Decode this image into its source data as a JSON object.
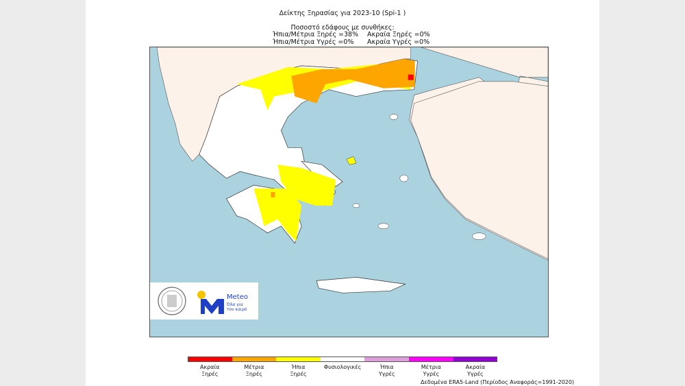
{
  "title": "Δείκτης Ξηρασίας για 2023-10 (Spi-1 )",
  "subtitle": "Ποσοστό εδάφους με συνθήκες:",
  "stats": {
    "mild_moderate_dry": "Ήπια/Μέτρια Ξηρές =38%",
    "extreme_dry": "Ακραία Ξηρές =0%",
    "mild_moderate_wet": "Ήπια/Μέτρια Υγρές =0%",
    "extreme_wet": "Ακραία Υγρές =0%"
  },
  "logo": {
    "brand": "Meteo",
    "tagline_1": "Όλα για",
    "tagline_2": "τον καιρό"
  },
  "colors": {
    "sea": "#aad3df",
    "greece": "#ffffff",
    "other_land": "#fdf2ea",
    "accent_blue": "#1e3fc6",
    "sun": "#f5c400"
  },
  "legend": [
    {
      "line1": "Ακραία",
      "line2": "Ξηρές",
      "color": "#ff0000"
    },
    {
      "line1": "Μέτρια",
      "line2": "Ξηρές",
      "color": "#ffa500"
    },
    {
      "line1": "Ήπια",
      "line2": "Ξηρές",
      "color": "#ffff00"
    },
    {
      "line1": "Φυσιολογικές",
      "line2": "",
      "color": "#ffffff"
    },
    {
      "line1": "Ήπια",
      "line2": "Υγρές",
      "color": "#dda0dd"
    },
    {
      "line1": "Μέτρια",
      "line2": "Υγρές",
      "color": "#ff00ff"
    },
    {
      "line1": "Ακραία",
      "line2": "Υγρές",
      "color": "#9400d3"
    }
  ],
  "source": "Δεδομένα ERA5-Land  (Περίοδος Αναφοράς=1991-2020)"
}
